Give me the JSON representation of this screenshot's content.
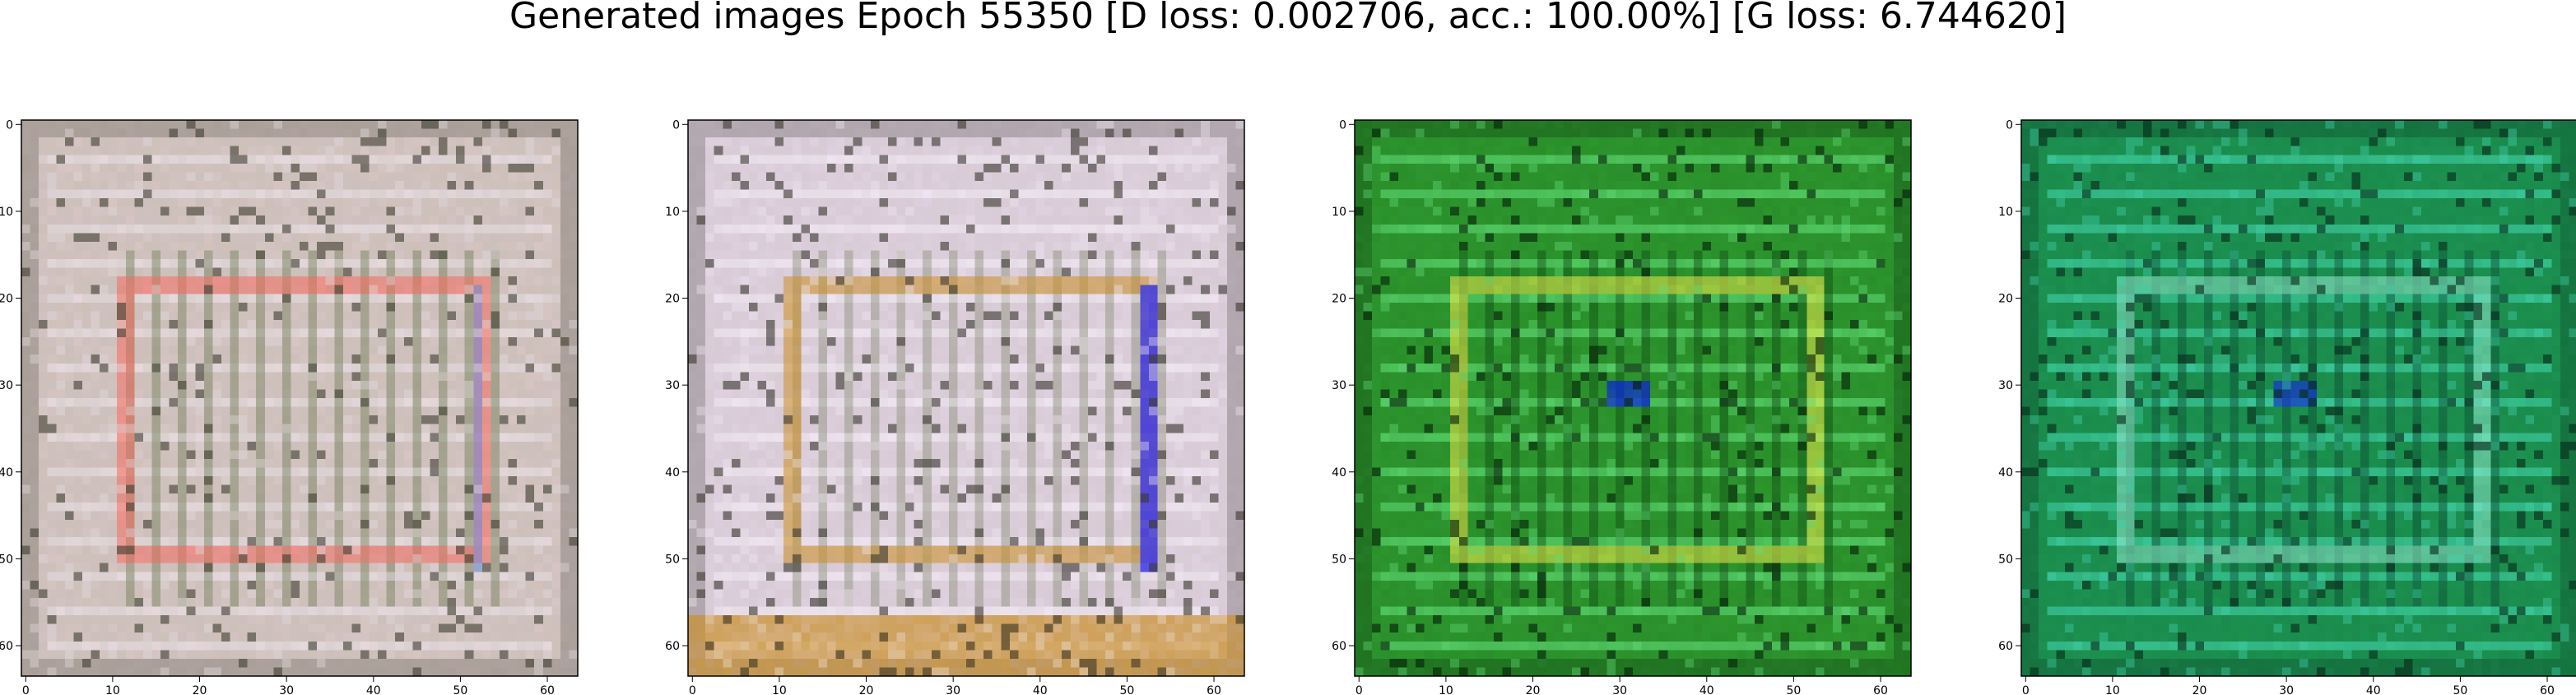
{
  "figure": {
    "title": "Generated images Epoch 55350 [D loss: 0.002706, acc.: 100.00%] [G loss: 6.744620]"
  },
  "axes_ticks": {
    "x": [
      "0",
      "10",
      "20",
      "30",
      "40",
      "50",
      "60"
    ],
    "y": [
      "0",
      "10",
      "20",
      "30",
      "40",
      "50",
      "60"
    ],
    "pixel_extent": [
      0,
      64
    ]
  },
  "panels": [
    {
      "palette": {
        "base": "#cdbfba",
        "light": "#e7dfe4",
        "grid": "#6e7c55",
        "dark": "#3f3f32",
        "accent": "#f26a5e",
        "accent2": "#4f86e6"
      }
    },
    {
      "palette": {
        "base": "#d8cbd6",
        "light": "#f1eaf3",
        "grid": "#8b8e78",
        "dark": "#3a3730",
        "accent": "#c98d24",
        "accent2": "#2b2bf0"
      }
    },
    {
      "palette": {
        "base": "#2a8f2a",
        "light": "#63df7b",
        "grid": "#0e4b12",
        "dark": "#041f08",
        "accent": "#e9e64a",
        "accent2": "#0c22d9"
      }
    },
    {
      "palette": {
        "base": "#1a8b4c",
        "light": "#44d7b0",
        "grid": "#0a4b32",
        "dark": "#072a1c",
        "accent": "#8be3c8",
        "accent2": "#1532c8"
      }
    }
  ]
}
